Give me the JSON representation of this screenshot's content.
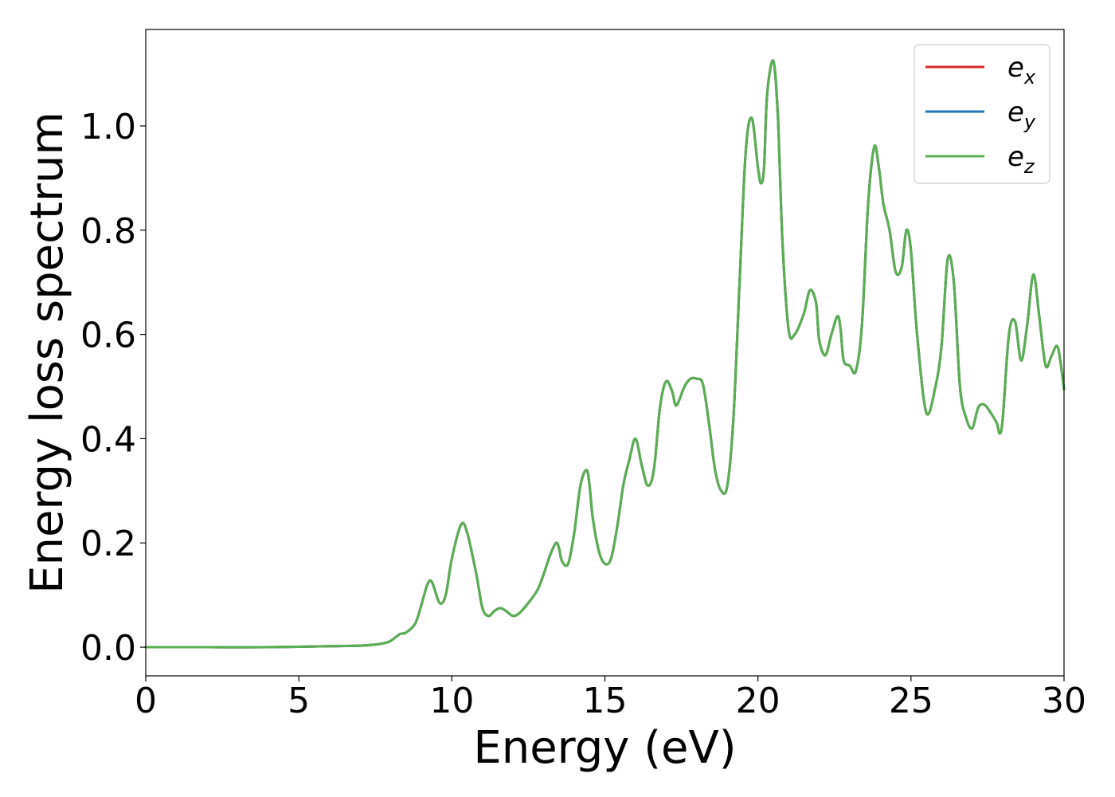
{
  "chart_data": {
    "type": "line",
    "title": "",
    "xlabel": "Energy (eV)",
    "ylabel": "Energy loss spectrum",
    "xlim": [
      0,
      30
    ],
    "ylim": [
      -0.055,
      1.185
    ],
    "xticks": [
      0,
      5,
      10,
      15,
      20,
      25,
      30
    ],
    "xtick_labels": [
      "0",
      "5",
      "10",
      "15",
      "20",
      "25",
      "30"
    ],
    "yticks": [
      0.0,
      0.2,
      0.4,
      0.6,
      0.8,
      1.0
    ],
    "ytick_labels": [
      "0.0",
      "0.2",
      "0.4",
      "0.6",
      "0.8",
      "1.0"
    ],
    "grid": false,
    "legend_position": "top-right",
    "x": [
      0,
      2,
      4,
      6,
      7,
      7.5,
      7.8,
      8.0,
      8.3,
      8.5,
      8.8,
      9.0,
      9.2,
      9.35,
      9.6,
      9.8,
      10.0,
      10.3,
      10.5,
      10.8,
      11.0,
      11.2,
      11.4,
      11.6,
      11.8,
      12.0,
      12.2,
      12.5,
      12.8,
      13.0,
      13.2,
      13.4,
      13.5,
      13.6,
      13.8,
      14.0,
      14.2,
      14.4,
      14.5,
      14.6,
      14.8,
      15.0,
      15.2,
      15.4,
      15.6,
      15.8,
      16.0,
      16.2,
      16.4,
      16.6,
      16.8,
      17.0,
      17.2,
      17.3,
      17.4,
      17.6,
      17.8,
      18.0,
      18.2,
      18.4,
      18.6,
      18.8,
      19.0,
      19.2,
      19.4,
      19.6,
      19.8,
      20.0,
      20.1,
      20.2,
      20.3,
      20.5,
      20.65,
      20.8,
      21.0,
      21.2,
      21.5,
      21.7,
      21.9,
      22.0,
      22.2,
      22.4,
      22.6,
      22.7,
      22.8,
      23.0,
      23.2,
      23.4,
      23.6,
      23.8,
      23.95,
      24.1,
      24.3,
      24.5,
      24.7,
      24.85,
      25.0,
      25.2,
      25.5,
      25.8,
      26.0,
      26.2,
      26.4,
      26.6,
      26.8,
      27.0,
      27.2,
      27.4,
      27.6,
      27.8,
      27.9,
      28.0,
      28.2,
      28.4,
      28.6,
      28.8,
      29.0,
      29.2,
      29.4,
      29.6,
      29.8,
      30.0
    ],
    "series": [
      {
        "name": "e_x",
        "color": "#d62728",
        "values": [
          0.0,
          0.0,
          0.0,
          0.002,
          0.003,
          0.005,
          0.008,
          0.012,
          0.025,
          0.028,
          0.045,
          0.08,
          0.12,
          0.125,
          0.085,
          0.1,
          0.17,
          0.235,
          0.22,
          0.14,
          0.075,
          0.06,
          0.07,
          0.075,
          0.068,
          0.06,
          0.065,
          0.085,
          0.11,
          0.14,
          0.175,
          0.2,
          0.19,
          0.165,
          0.16,
          0.22,
          0.31,
          0.34,
          0.31,
          0.25,
          0.185,
          0.16,
          0.17,
          0.23,
          0.31,
          0.36,
          0.4,
          0.35,
          0.31,
          0.34,
          0.46,
          0.51,
          0.49,
          0.465,
          0.47,
          0.5,
          0.515,
          0.515,
          0.505,
          0.43,
          0.34,
          0.3,
          0.31,
          0.44,
          0.7,
          0.95,
          1.015,
          0.92,
          0.89,
          0.92,
          1.06,
          1.125,
          1.02,
          0.78,
          0.61,
          0.6,
          0.64,
          0.685,
          0.66,
          0.59,
          0.56,
          0.6,
          0.635,
          0.61,
          0.55,
          0.54,
          0.53,
          0.62,
          0.85,
          0.96,
          0.92,
          0.85,
          0.8,
          0.72,
          0.73,
          0.8,
          0.76,
          0.6,
          0.45,
          0.5,
          0.58,
          0.745,
          0.7,
          0.5,
          0.44,
          0.42,
          0.46,
          0.465,
          0.45,
          0.43,
          0.41,
          0.44,
          0.6,
          0.625,
          0.55,
          0.62,
          0.715,
          0.63,
          0.54,
          0.56,
          0.575,
          0.495
        ]
      },
      {
        "name": "e_y",
        "color": "#1f77b4",
        "values": [
          0.0,
          0.0,
          0.0,
          0.002,
          0.003,
          0.005,
          0.008,
          0.012,
          0.025,
          0.028,
          0.045,
          0.08,
          0.12,
          0.125,
          0.085,
          0.1,
          0.17,
          0.235,
          0.22,
          0.14,
          0.075,
          0.06,
          0.07,
          0.075,
          0.068,
          0.06,
          0.065,
          0.085,
          0.11,
          0.14,
          0.175,
          0.2,
          0.19,
          0.165,
          0.16,
          0.22,
          0.31,
          0.34,
          0.31,
          0.25,
          0.185,
          0.16,
          0.17,
          0.23,
          0.31,
          0.36,
          0.4,
          0.35,
          0.31,
          0.34,
          0.46,
          0.51,
          0.49,
          0.465,
          0.47,
          0.5,
          0.515,
          0.515,
          0.505,
          0.43,
          0.34,
          0.3,
          0.31,
          0.44,
          0.7,
          0.95,
          1.015,
          0.92,
          0.89,
          0.92,
          1.06,
          1.125,
          1.02,
          0.78,
          0.61,
          0.6,
          0.64,
          0.685,
          0.66,
          0.59,
          0.56,
          0.6,
          0.635,
          0.61,
          0.55,
          0.54,
          0.53,
          0.62,
          0.85,
          0.96,
          0.92,
          0.85,
          0.8,
          0.72,
          0.73,
          0.8,
          0.76,
          0.6,
          0.45,
          0.5,
          0.58,
          0.745,
          0.7,
          0.5,
          0.44,
          0.42,
          0.46,
          0.465,
          0.45,
          0.43,
          0.41,
          0.44,
          0.6,
          0.625,
          0.55,
          0.62,
          0.715,
          0.63,
          0.54,
          0.56,
          0.575,
          0.495
        ]
      },
      {
        "name": "e_z",
        "color": "#5aaf51",
        "values": [
          0.0,
          0.0,
          0.0,
          0.002,
          0.003,
          0.005,
          0.008,
          0.012,
          0.025,
          0.028,
          0.045,
          0.08,
          0.12,
          0.125,
          0.085,
          0.1,
          0.17,
          0.235,
          0.22,
          0.14,
          0.075,
          0.06,
          0.07,
          0.075,
          0.068,
          0.06,
          0.065,
          0.085,
          0.11,
          0.14,
          0.175,
          0.2,
          0.19,
          0.165,
          0.16,
          0.22,
          0.31,
          0.34,
          0.31,
          0.25,
          0.185,
          0.16,
          0.17,
          0.23,
          0.31,
          0.36,
          0.4,
          0.35,
          0.31,
          0.34,
          0.46,
          0.51,
          0.49,
          0.465,
          0.47,
          0.5,
          0.515,
          0.515,
          0.505,
          0.43,
          0.34,
          0.3,
          0.31,
          0.44,
          0.7,
          0.95,
          1.015,
          0.92,
          0.89,
          0.92,
          1.06,
          1.125,
          1.02,
          0.78,
          0.61,
          0.6,
          0.64,
          0.685,
          0.66,
          0.59,
          0.56,
          0.6,
          0.635,
          0.61,
          0.55,
          0.54,
          0.53,
          0.62,
          0.85,
          0.96,
          0.92,
          0.85,
          0.8,
          0.72,
          0.73,
          0.8,
          0.76,
          0.6,
          0.45,
          0.5,
          0.58,
          0.745,
          0.7,
          0.5,
          0.44,
          0.42,
          0.46,
          0.465,
          0.45,
          0.43,
          0.41,
          0.44,
          0.6,
          0.625,
          0.55,
          0.62,
          0.715,
          0.63,
          0.54,
          0.56,
          0.575,
          0.495
        ]
      }
    ],
    "legend": [
      {
        "base": "e",
        "sub": "x",
        "color": "#d62728"
      },
      {
        "base": "e",
        "sub": "y",
        "color": "#1f77b4"
      },
      {
        "base": "e",
        "sub": "z",
        "color": "#5aaf51"
      }
    ]
  }
}
